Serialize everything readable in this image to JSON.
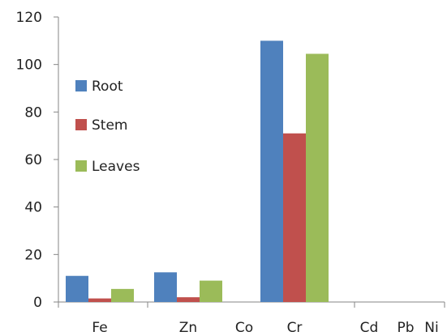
{
  "chart_data": {
    "type": "bar",
    "categories": [
      "Fe",
      "Zn",
      "Co",
      "Cr",
      "Cd",
      "Pb",
      "Ni"
    ],
    "series": [
      {
        "name": "Root",
        "color": "#4F81BD",
        "values": [
          11,
          12.5,
          0,
          110,
          0,
          0,
          0
        ]
      },
      {
        "name": "Stem",
        "color": "#C0504D",
        "values": [
          1.5,
          2,
          0,
          71,
          0,
          0,
          0
        ]
      },
      {
        "name": "Leaves",
        "color": "#9BBB59",
        "values": [
          5.5,
          9,
          0,
          104.5,
          0,
          0,
          0
        ]
      }
    ],
    "ylim": [
      0,
      120
    ],
    "yticks": [
      0,
      20,
      40,
      60,
      80,
      100,
      120
    ],
    "grid": false,
    "legend_position": "left"
  }
}
